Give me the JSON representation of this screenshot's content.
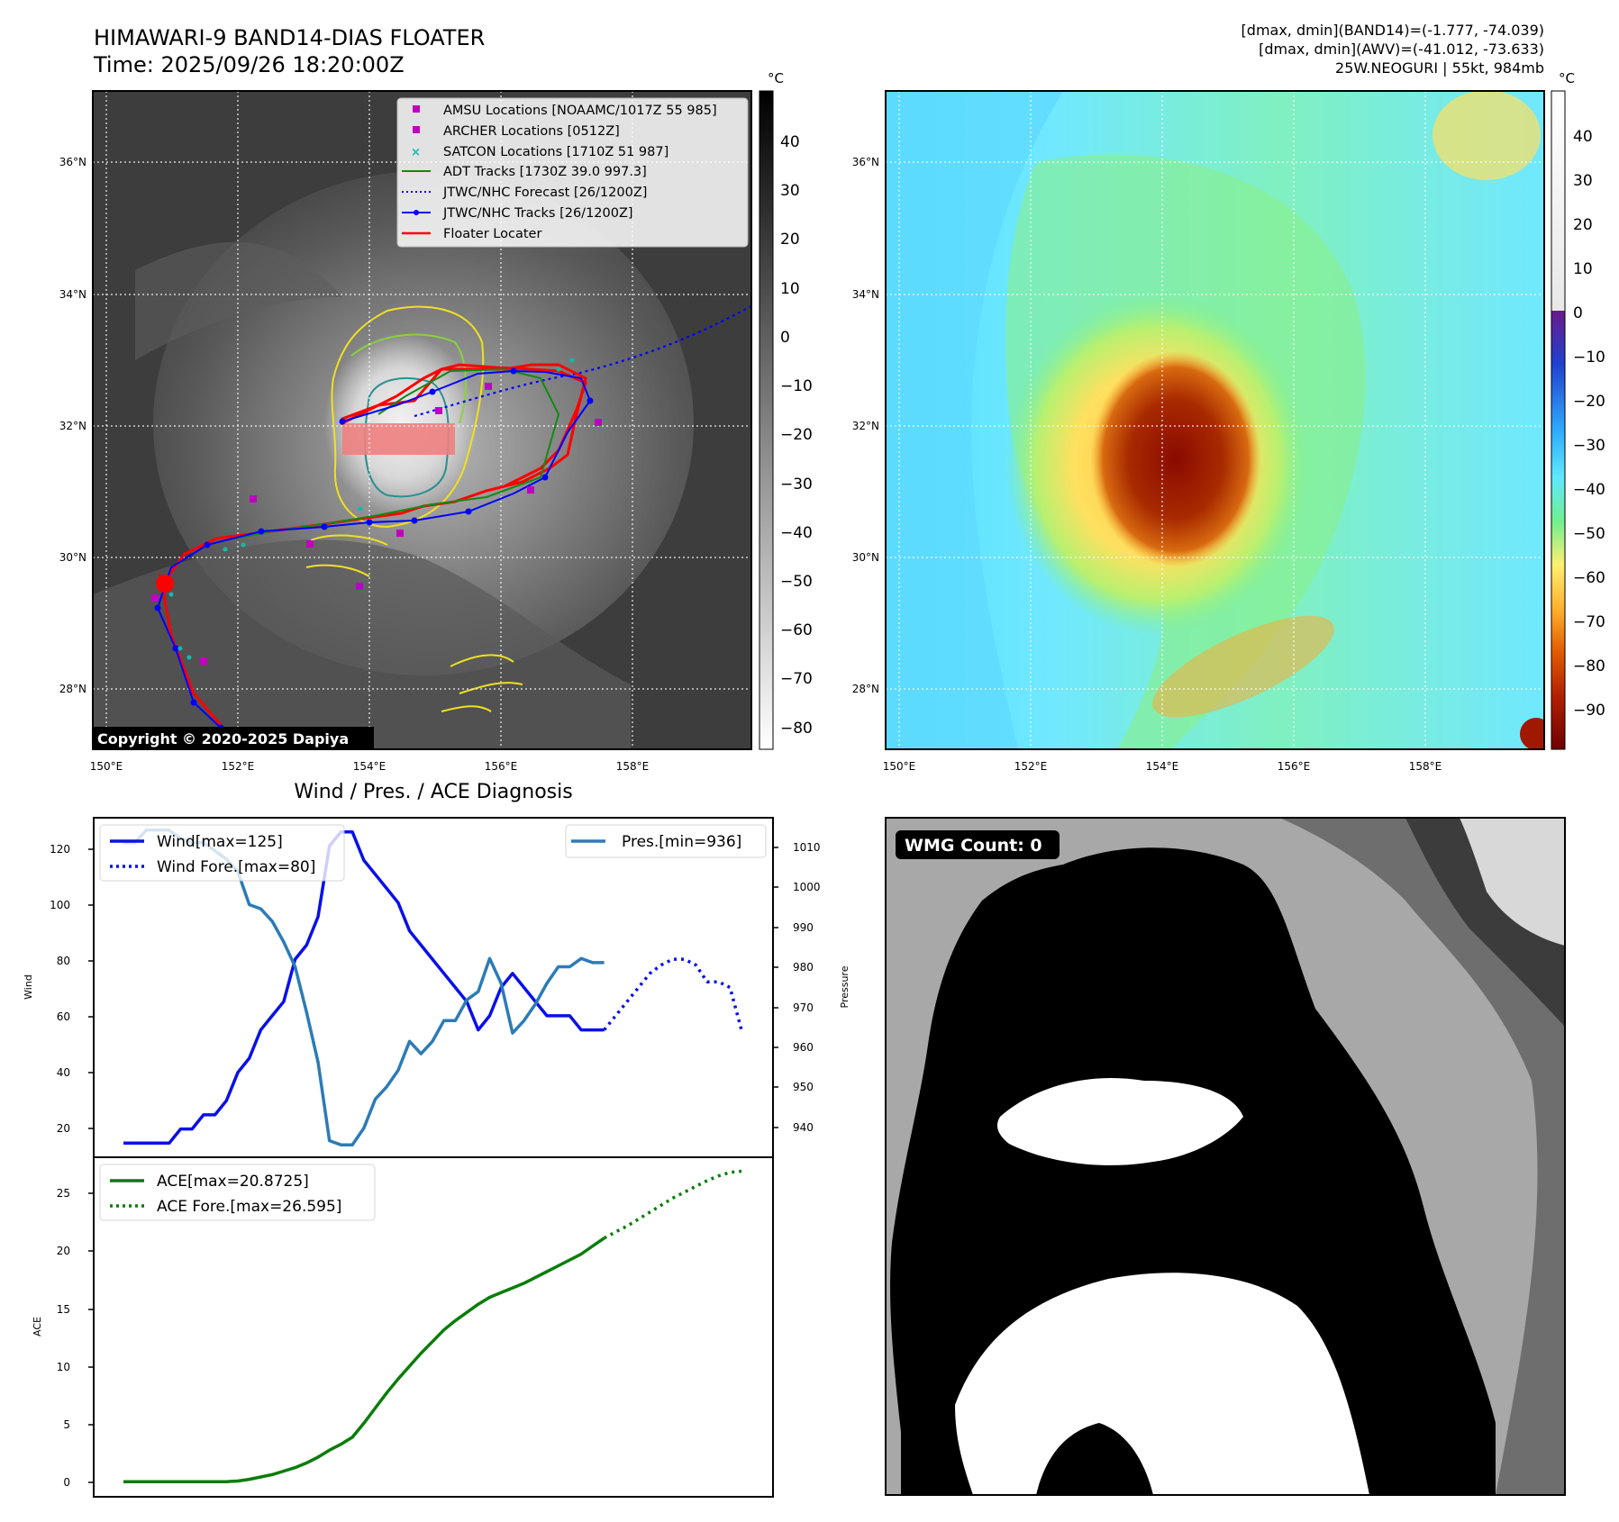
{
  "header": {
    "title_line1": "HIMAWARI-9 BAND14-DIAS FLOATER",
    "title_line2": "Time: 2025/09/26 18:20:00Z",
    "stats_line1": "[dmax, dmin](BAND14)=(-1.777, -74.039)",
    "stats_line2": "[dmax, dmin](AWV)=(-41.012, -73.633)",
    "stats_line3": "25W.NEOGURI | 55kt, 984mb"
  },
  "map_common": {
    "lat_labels": [
      "36°N",
      "34°N",
      "32°N",
      "30°N",
      "28°N"
    ],
    "lon_labels": [
      "150°E",
      "152°E",
      "154°E",
      "156°E",
      "158°E"
    ],
    "colorbar_unit": "°C"
  },
  "map_ir": {
    "copyright": "Copyright © 2020-2025 Dapiya",
    "colorbar_ticks": [
      "40",
      "30",
      "20",
      "10",
      "0",
      "−10",
      "−20",
      "−30",
      "−40",
      "−50",
      "−60",
      "−70",
      "−80"
    ],
    "legend": [
      "AMSU Locations [NOAAMC/1017Z 55 985]",
      "ARCHER Locations [0512Z]",
      "SATCON Locations [1710Z 51 987]",
      "ADT Tracks [1730Z 39.0 997.3]",
      "JTWC/NHC Forecast [26/1200Z]",
      "JTWC/NHC Tracks [26/1200Z]",
      "Floater Locater"
    ]
  },
  "map_color": {
    "colorbar_ticks": [
      "40",
      "30",
      "20",
      "10",
      "0",
      "−10",
      "−20",
      "−30",
      "−40",
      "−50",
      "−60",
      "−70",
      "−80",
      "−90"
    ]
  },
  "diagnosis": {
    "title": "Wind / Pres. / ACE Diagnosis",
    "wind_axis_label": "Wind",
    "pres_axis_label": "Pressure",
    "ace_axis_label": "ACE",
    "wind_ticks": [
      "120",
      "100",
      "80",
      "60",
      "40",
      "20"
    ],
    "pres_ticks": [
      "1010",
      "1000",
      "990",
      "980",
      "970",
      "960",
      "950",
      "940"
    ],
    "ace_ticks": [
      "25",
      "20",
      "15",
      "10",
      "5",
      "0"
    ],
    "legend_wind": "Wind[max=125]",
    "legend_wind_fore": "Wind Fore.[max=80]",
    "legend_pres": "Pres.[min=936]",
    "legend_ace": "ACE[max=20.8725]",
    "legend_ace_fore": "ACE Fore.[max=26.595]"
  },
  "wmg": {
    "label": "WMG Count: 0"
  },
  "colors": {
    "wind": "#0a10e8",
    "pressure": "#2c7bb6",
    "ace": "#0a7d0a",
    "track_red": "#ff0000",
    "track_blue": "#0000ff",
    "adt_green": "#138a13",
    "amsu_magenta": "#c000c0",
    "satcon_cyan": "#11bbaa"
  },
  "chart_data": [
    {
      "type": "line",
      "title": "Wind / Pres. / ACE Diagnosis",
      "ylabel": "Wind",
      "ylim": [
        10,
        130
      ],
      "series": [
        {
          "name": "Wind[max=125]",
          "x": [
            0,
            1,
            2,
            3,
            4,
            5,
            6,
            7,
            8,
            9,
            10,
            11,
            12,
            13,
            14,
            15,
            16,
            17,
            18,
            19,
            20,
            21,
            22,
            23,
            24,
            25,
            26,
            27,
            28,
            29,
            30,
            31,
            32,
            33,
            34,
            35,
            36,
            37,
            38,
            39,
            40,
            41,
            42
          ],
          "values": [
            15,
            15,
            15,
            15,
            15,
            20,
            20,
            25,
            25,
            30,
            40,
            45,
            55,
            60,
            65,
            80,
            85,
            95,
            120,
            125,
            125,
            115,
            110,
            105,
            100,
            90,
            85,
            80,
            75,
            70,
            65,
            55,
            60,
            70,
            75,
            70,
            65,
            60,
            60,
            60,
            55,
            55,
            55
          ]
        },
        {
          "name": "Wind Fore.[max=80]",
          "x": [
            42,
            43,
            44,
            45,
            46,
            47,
            48,
            49,
            50,
            51,
            52,
            53,
            54
          ],
          "values": [
            55,
            60,
            65,
            70,
            75,
            78,
            80,
            80,
            78,
            72,
            72,
            70,
            55
          ]
        }
      ]
    },
    {
      "type": "line",
      "ylabel": "Pressure",
      "ylim": [
        933,
        1015
      ],
      "series": [
        {
          "name": "Pres.[min=936]",
          "x": [
            0,
            1,
            2,
            3,
            4,
            5,
            6,
            7,
            8,
            9,
            10,
            11,
            12,
            13,
            14,
            15,
            16,
            17,
            18,
            19,
            20,
            21,
            22,
            23,
            24,
            25,
            26,
            27,
            28,
            29,
            30,
            31,
            32,
            33,
            34,
            35,
            36,
            37,
            38,
            39,
            40,
            41,
            42
          ],
          "values": [
            1009,
            1009,
            1012,
            1012,
            1012,
            1010,
            1009,
            1009,
            1007,
            1005,
            1002,
            994,
            993,
            990,
            985,
            979,
            968,
            956,
            937,
            936,
            936,
            940,
            947,
            950,
            954,
            961,
            958,
            961,
            966,
            966,
            971,
            973,
            981,
            975,
            963,
            966,
            970,
            975,
            979,
            979,
            981,
            980,
            980
          ]
        }
      ]
    },
    {
      "type": "line",
      "ylabel": "ACE",
      "ylim": [
        -1.3,
        27.8
      ],
      "series": [
        {
          "name": "ACE[max=20.8725]",
          "x": [
            0,
            1,
            2,
            3,
            4,
            5,
            6,
            7,
            8,
            9,
            10,
            11,
            12,
            13,
            14,
            15,
            16,
            17,
            18,
            19,
            20,
            21,
            22,
            23,
            24,
            25,
            26,
            27,
            28,
            29,
            30,
            31,
            32,
            33,
            34,
            35,
            36,
            37,
            38,
            39,
            40,
            41,
            42
          ],
          "values": [
            0,
            0,
            0,
            0,
            0,
            0,
            0,
            0,
            0,
            0,
            0.05,
            0.2,
            0.4,
            0.6,
            0.9,
            1.2,
            1.6,
            2.1,
            2.7,
            3.2,
            3.8,
            5.0,
            6.3,
            7.6,
            8.8,
            9.9,
            11.0,
            12.0,
            13.0,
            13.8,
            14.5,
            15.2,
            15.8,
            16.2,
            16.6,
            17.0,
            17.5,
            18.0,
            18.5,
            19.0,
            19.5,
            20.2,
            20.87
          ]
        },
        {
          "name": "ACE Fore.[max=26.595]",
          "x": [
            42,
            43,
            44,
            45,
            46,
            47,
            48,
            49,
            50,
            51,
            52,
            53,
            54
          ],
          "values": [
            20.87,
            21.4,
            21.9,
            22.5,
            23.1,
            23.7,
            24.3,
            24.8,
            25.3,
            25.8,
            26.2,
            26.5,
            26.6
          ]
        }
      ]
    }
  ]
}
